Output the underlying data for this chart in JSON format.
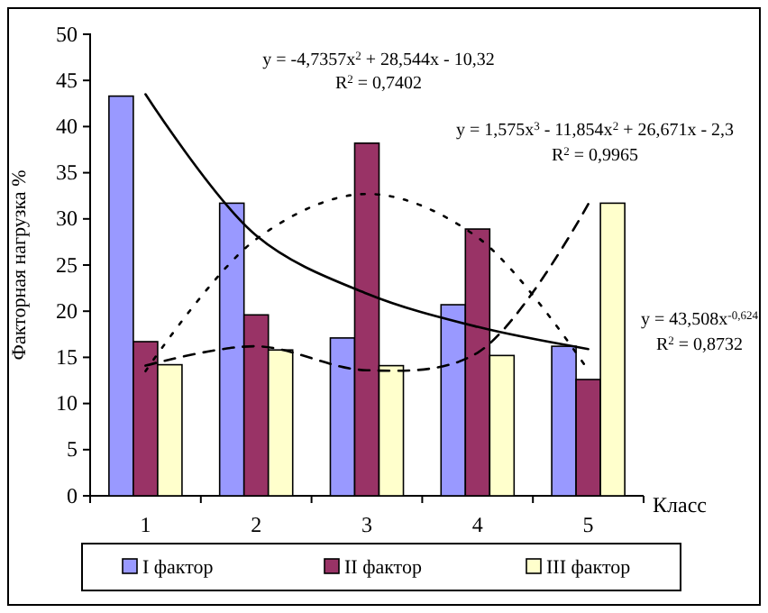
{
  "chart_data": {
    "type": "bar",
    "ylabel": "Факторная нагрузка %",
    "xlabel": "Класс",
    "categories": [
      "1",
      "2",
      "3",
      "4",
      "5"
    ],
    "series": [
      {
        "name": "I фактор",
        "color": "#9999ff",
        "values": [
          43.3,
          31.7,
          17.1,
          20.7,
          16.2
        ]
      },
      {
        "name": "II фактор",
        "color": "#993366",
        "values": [
          16.7,
          19.6,
          38.2,
          28.9,
          12.6
        ]
      },
      {
        "name": "III фактор",
        "color": "#ffffcc",
        "values": [
          14.2,
          15.8,
          14.1,
          15.2,
          31.7
        ]
      },
      {
        "type": "line",
        "color": "#000000",
        "line_style": "solid",
        "values": [
          43.5,
          28.2,
          21.9,
          18.3,
          15.9
        ]
      },
      {
        "type": "line",
        "color": "#000000",
        "line_style": "dotted",
        "values": [
          13.5,
          27.8,
          32.7,
          28.0,
          13.6
        ]
      },
      {
        "type": "line",
        "color": "#000000",
        "line_style": "dashed",
        "values": [
          14.1,
          16.2,
          13.6,
          15.5,
          31.6
        ]
      }
    ],
    "ylim": [
      0,
      50
    ],
    "yticks": [
      0,
      5,
      10,
      15,
      20,
      25,
      30,
      35,
      40,
      45,
      50
    ],
    "grid": false,
    "legend": "bottom",
    "annotations": [
      "y = -4,7357x$^{2}$ + 28,544x - 10,32",
      "R$^{2}$ = 0,7402",
      "y = 1,575x$^{3}$ - 11,854x$^{2}$ + 26,671x - 2,3",
      "R$^{2}$ = 0,9965",
      "y = 43,508x$^{-0,624}$",
      "R$^{2}$ = 0,8732"
    ]
  }
}
